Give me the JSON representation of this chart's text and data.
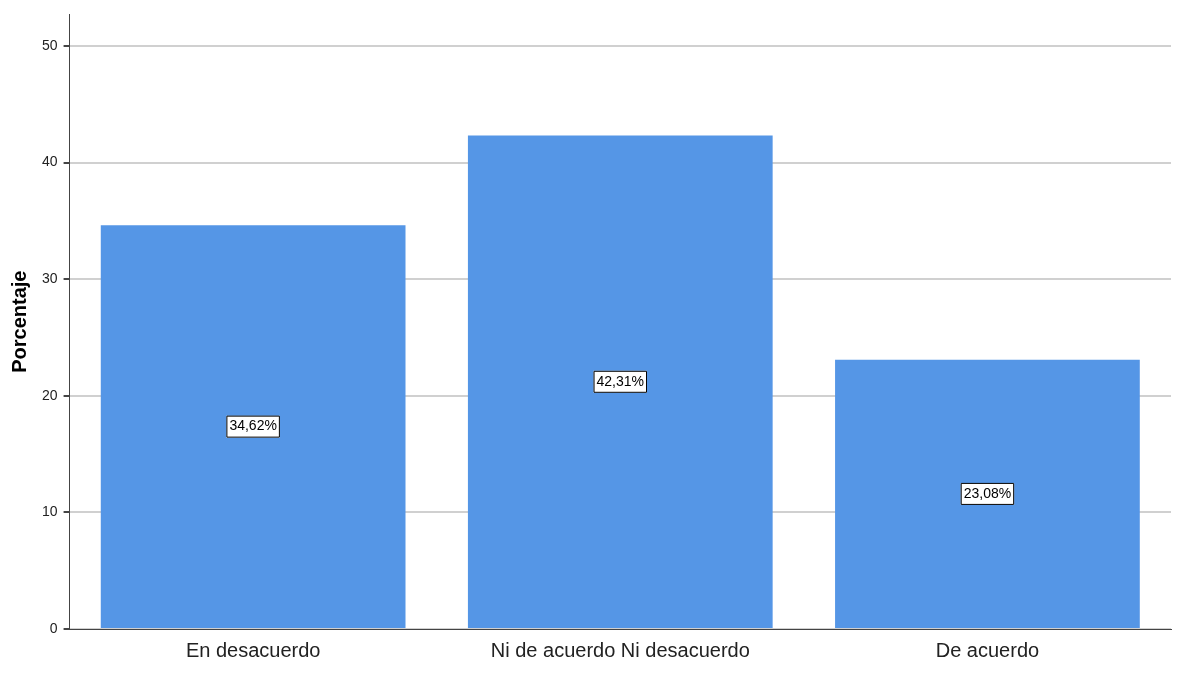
{
  "chart_data": {
    "type": "bar",
    "ylabel": "Porcentaje",
    "categories": [
      "En desacuerdo",
      "Ni de acuerdo Ni desacuerdo",
      "De acuerdo"
    ],
    "values": [
      34.62,
      42.31,
      23.08
    ],
    "value_labels": [
      "34,62%",
      "42,31%",
      "23,08%"
    ],
    "color": "#5596e6",
    "ylim": [
      0,
      52.7
    ],
    "yticks": [
      0,
      10,
      20,
      30,
      40,
      50
    ],
    "grid": "y",
    "legend": false
  }
}
